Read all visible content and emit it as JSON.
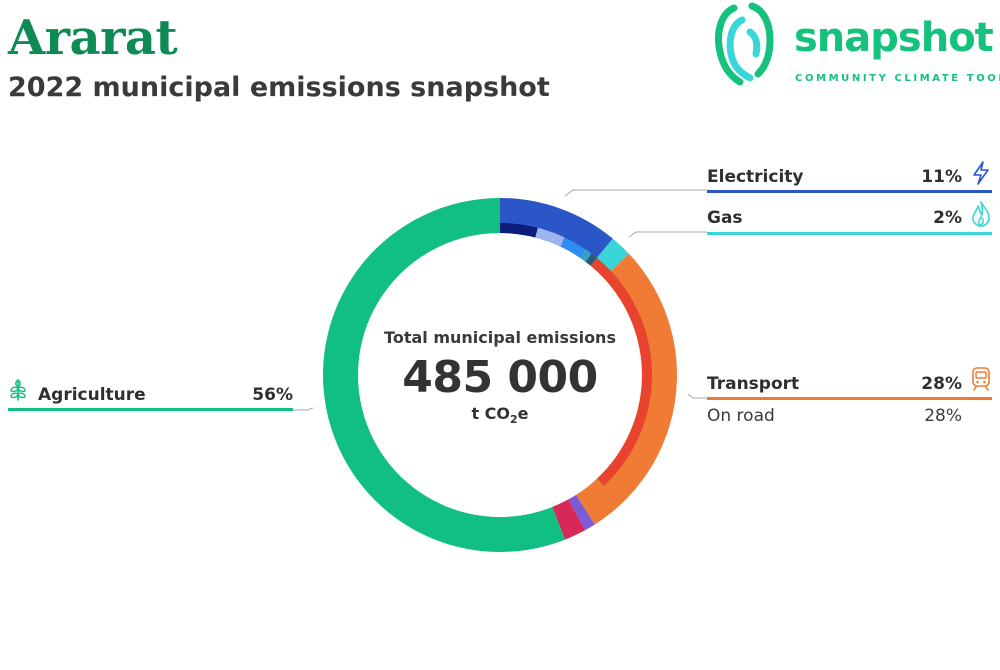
{
  "header": {
    "title": "Ararat",
    "subtitle": "2022 municipal emissions snapshot"
  },
  "logo": {
    "wordmark": "snapshot",
    "tagline": "COMMUNITY CLIMATE TOOL",
    "color": "#14c27e"
  },
  "center": {
    "label": "Total municipal emissions",
    "value": "485 000",
    "unit_prefix": "t CO",
    "unit_sub": "2",
    "unit_suffix": "e"
  },
  "legend": {
    "electricity": {
      "label": "Electricity",
      "pct": "11%",
      "color": "#2a56c8",
      "icon": "lightning-icon"
    },
    "gas": {
      "label": "Gas",
      "pct": "2%",
      "color": "#38d6d6",
      "icon": "flame-icon"
    },
    "transport": {
      "label": "Transport",
      "pct": "28%",
      "color": "#f07b35",
      "icon": "train-icon",
      "sub_label": "On road",
      "sub_pct": "28%"
    },
    "agriculture": {
      "label": "Agriculture",
      "pct": "56%",
      "color": "#12bf82",
      "icon": "plant-icon"
    }
  },
  "chart_data": {
    "type": "pie",
    "title": "Total municipal emissions",
    "total": 485000,
    "unit": "t CO2e",
    "series": [
      {
        "name": "Electricity",
        "value": 11,
        "color": "#2a56c8"
      },
      {
        "name": "Gas",
        "value": 2,
        "color": "#38d6d6"
      },
      {
        "name": "Transport",
        "value": 28,
        "color": "#f07b35"
      },
      {
        "name": "",
        "value": 1,
        "color": "#7b5cd6"
      },
      {
        "name": "",
        "value": 2,
        "color": "#d8285a"
      },
      {
        "name": "Agriculture",
        "value": 56,
        "color": "#12bf82"
      }
    ],
    "inner_ring": [
      {
        "value": 4,
        "color": "#0c1e7a"
      },
      {
        "value": 3,
        "color": "#9fb4ee"
      },
      {
        "value": 2.5,
        "color": "#2f8cf0"
      },
      {
        "value": 0.8,
        "color": "#38a0c8"
      },
      {
        "value": 0.7,
        "color": "#2a5a70"
      },
      {
        "value": 27,
        "color": "#e8432e"
      }
    ]
  }
}
